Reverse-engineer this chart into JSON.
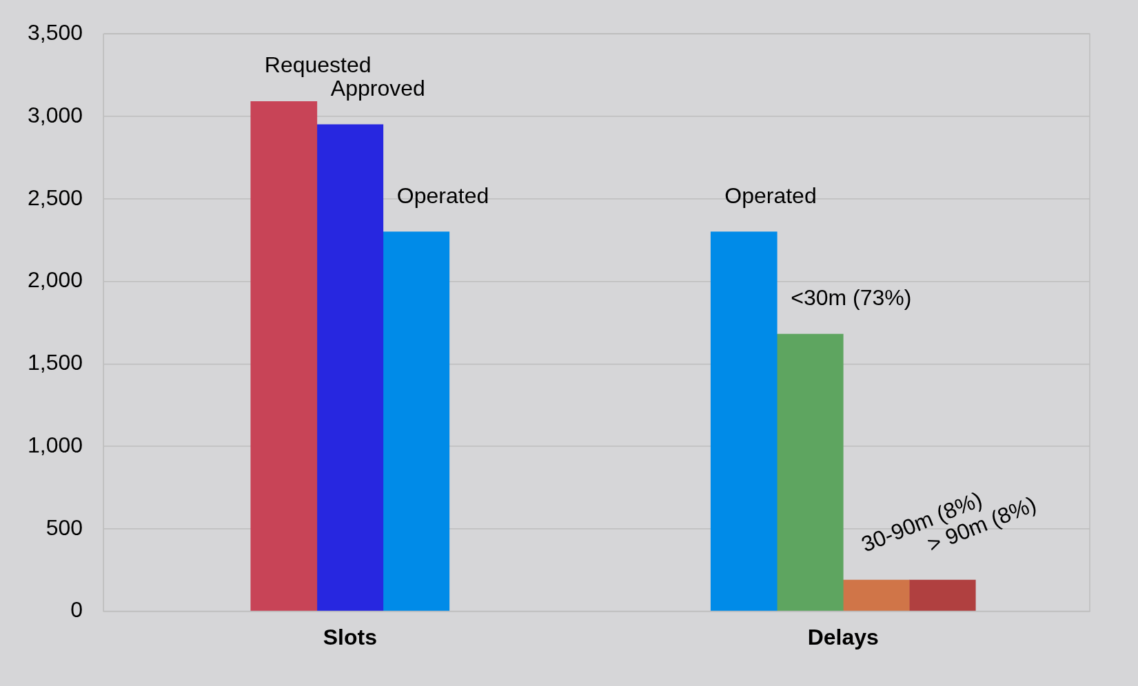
{
  "chart_data": {
    "type": "bar",
    "categories": [
      "Slots",
      "Delays"
    ],
    "series": [
      {
        "name": "Requested",
        "color": "#c84457",
        "values": [
          3090,
          null
        ]
      },
      {
        "name": "Approved",
        "color": "#2727e0",
        "values": [
          2950,
          null
        ]
      },
      {
        "name": "Operated",
        "color": "#008be8",
        "values": [
          2300,
          2300
        ]
      },
      {
        "name": "<30m (73%)",
        "color": "#5ea560",
        "values": [
          null,
          1680
        ]
      },
      {
        "name": "30-90m (8%)",
        "color": "#d07548",
        "values": [
          null,
          190
        ]
      },
      {
        "name": "> 90m (8%)",
        "color": "#b04040",
        "values": [
          null,
          190
        ]
      }
    ],
    "ylim": [
      0,
      3500
    ],
    "yticks": [
      0,
      500,
      {
        "value": 1000,
        "label": "1,000"
      },
      {
        "value": 1500,
        "label": "1,500"
      },
      {
        "value": 2000,
        "label": "2,000"
      },
      {
        "value": 2500,
        "label": "2,500"
      },
      {
        "value": 3000,
        "label": "3,000"
      },
      {
        "value": 3500,
        "label": "3,500"
      }
    ],
    "grid": "y",
    "legend": false
  }
}
